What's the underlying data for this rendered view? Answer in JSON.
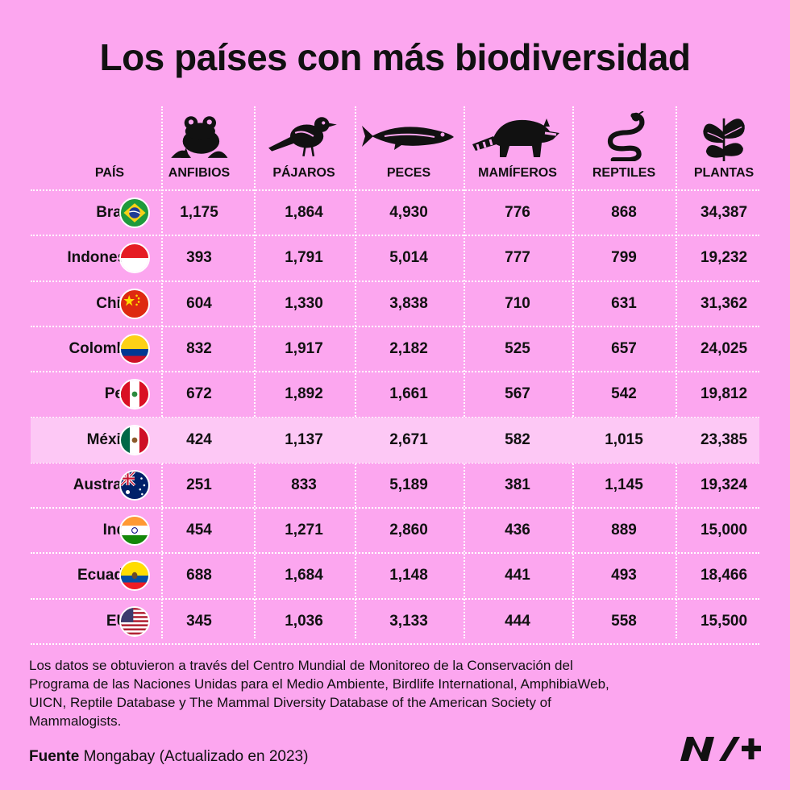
{
  "chart_data": {
    "type": "table",
    "title": "Los países con más biodiversidad",
    "columns": [
      "PAÍS",
      "ANFIBIOS",
      "PÁJAROS",
      "PECES",
      "MAMÍFEROS",
      "REPTILES",
      "PLANTAS"
    ],
    "column_icons": [
      "frog-icon",
      "bird-icon",
      "fish-icon",
      "raccoon-icon",
      "snake-icon",
      "plant-icon"
    ],
    "rows": [
      {
        "country": "Brasil",
        "flag": "brazil-flag-icon",
        "values": [
          "1,175",
          "1,864",
          "4,930",
          "776",
          "868",
          "34,387"
        ]
      },
      {
        "country": "Indonesia",
        "flag": "indonesia-flag-icon",
        "values": [
          "393",
          "1,791",
          "5,014",
          "777",
          "799",
          "19,232"
        ]
      },
      {
        "country": "China",
        "flag": "china-flag-icon",
        "values": [
          "604",
          "1,330",
          "3,838",
          "710",
          "631",
          "31,362"
        ]
      },
      {
        "country": "Colombia",
        "flag": "colombia-flag-icon",
        "values": [
          "832",
          "1,917",
          "2,182",
          "525",
          "657",
          "24,025"
        ]
      },
      {
        "country": "Perú",
        "flag": "peru-flag-icon",
        "values": [
          "672",
          "1,892",
          "1,661",
          "567",
          "542",
          "19,812"
        ]
      },
      {
        "country": "México",
        "flag": "mexico-flag-icon",
        "values": [
          "424",
          "1,137",
          "2,671",
          "582",
          "1,015",
          "23,385"
        ],
        "highlighted": true
      },
      {
        "country": "Australia",
        "flag": "australia-flag-icon",
        "values": [
          "251",
          "833",
          "5,189",
          "381",
          "1,145",
          "19,324"
        ]
      },
      {
        "country": "India",
        "flag": "india-flag-icon",
        "values": [
          "454",
          "1,271",
          "2,860",
          "436",
          "889",
          "15,000"
        ]
      },
      {
        "country": "Ecuador",
        "flag": "ecuador-flag-icon",
        "values": [
          "688",
          "1,684",
          "1,148",
          "441",
          "493",
          "18,466"
        ]
      },
      {
        "country": "EUA",
        "flag": "usa-flag-icon",
        "values": [
          "345",
          "1,036",
          "3,133",
          "444",
          "558",
          "15,500"
        ]
      }
    ],
    "colors": {
      "background": "#fca6ef",
      "highlight_row": "#fdc8f5",
      "text": "#111111",
      "grid": "#ffffff"
    }
  },
  "footer": {
    "note": "Los datos se obtuvieron a través del Centro Mundial de Monitoreo de la Conservación del Programa de las Naciones Unidas para el Medio Ambiente, Birdlife International, AmphibiaWeb, UICN, Reptile Database y The Mammal Diversity Database of the American Society of Mammalogists.",
    "source_label": "Fuente",
    "source_text": "Mongabay (Actualizado en 2023)"
  },
  "logo": {
    "name": "n-plus-logo"
  }
}
